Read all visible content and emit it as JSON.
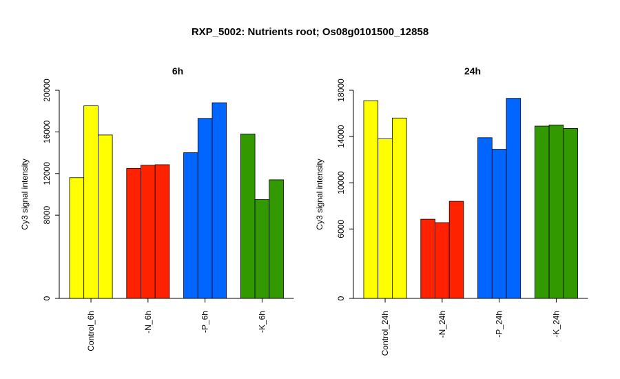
{
  "title": "RXP_5002: Nutrients root; Os08g0101500_12858",
  "chart_data": [
    {
      "type": "bar",
      "title": "6h",
      "ylabel": "Cy3 signal intensity",
      "ylim": [
        0,
        20000
      ],
      "yticks": [
        "0",
        "8000",
        "12000",
        "16000",
        "20000"
      ],
      "groups": [
        {
          "label": "Control_6h",
          "color": "#ffff00",
          "values": [
            11600,
            18500,
            15700
          ]
        },
        {
          "label": "-N_6h",
          "color": "#ff2200",
          "values": [
            12500,
            12800,
            12850
          ]
        },
        {
          "label": "-P_6h",
          "color": "#0066ff",
          "values": [
            14000,
            17300,
            18800
          ]
        },
        {
          "label": "-K_6h",
          "color": "#339900",
          "values": [
            15800,
            9500,
            11400
          ]
        }
      ]
    },
    {
      "type": "bar",
      "title": "24h",
      "ylabel": "Cy3 signal intensity",
      "ylim": [
        0,
        18000
      ],
      "yticks": [
        "0",
        "6000",
        "10000",
        "14000",
        "18000"
      ],
      "groups": [
        {
          "label": "Control_24h",
          "color": "#ffff00",
          "values": [
            17100,
            13800,
            15600
          ]
        },
        {
          "label": "-N_24h",
          "color": "#ff2200",
          "values": [
            6850,
            6550,
            8400
          ]
        },
        {
          "label": "-P_24h",
          "color": "#0066ff",
          "values": [
            13900,
            12900,
            17300
          ]
        },
        {
          "label": "-K_24h",
          "color": "#339900",
          "values": [
            14900,
            15000,
            14700
          ]
        }
      ]
    }
  ]
}
